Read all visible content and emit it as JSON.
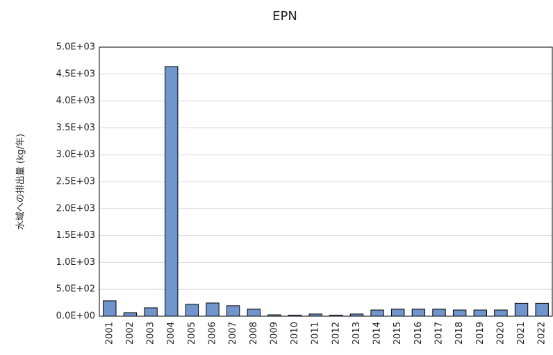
{
  "chart_data": {
    "type": "bar",
    "title": "EPN",
    "y_label": "水域への排出量 (kg/年)",
    "categories": [
      "2001",
      "2002",
      "2003",
      "2004",
      "2005",
      "2006",
      "2007",
      "2008",
      "2009",
      "2010",
      "2011",
      "2012",
      "2013",
      "2014",
      "2015",
      "2016",
      "2017",
      "2018",
      "2019",
      "2020",
      "2021",
      "2022"
    ],
    "values": [
      285,
      65,
      155,
      4640,
      220,
      245,
      195,
      130,
      25,
      20,
      40,
      20,
      40,
      115,
      130,
      130,
      130,
      115,
      115,
      115,
      240,
      240
    ],
    "color": "#7094cc",
    "ylim": [
      0,
      5000
    ],
    "yticks": [
      {
        "value": 0,
        "label": "0.0E+00"
      },
      {
        "value": 500,
        "label": "5.0E+02"
      },
      {
        "value": 1000,
        "label": "1.0E+03"
      },
      {
        "value": 1500,
        "label": "1.5E+03"
      },
      {
        "value": 2000,
        "label": "2.0E+03"
      },
      {
        "value": 2500,
        "label": "2.5E+03"
      },
      {
        "value": 3000,
        "label": "3.0E+03"
      },
      {
        "value": 3500,
        "label": "3.5E+03"
      },
      {
        "value": 4000,
        "label": "4.0E+03"
      },
      {
        "value": 4500,
        "label": "4.5E+03"
      },
      {
        "value": 5000,
        "label": "5.0E+03"
      }
    ],
    "grid": true
  }
}
